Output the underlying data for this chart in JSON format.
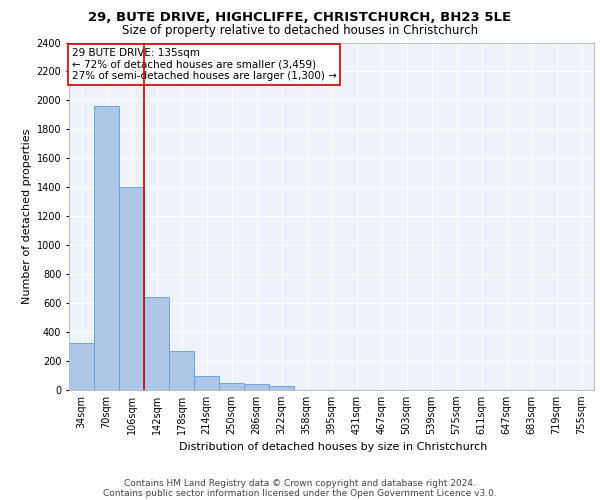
{
  "title1": "29, BUTE DRIVE, HIGHCLIFFE, CHRISTCHURCH, BH23 5LE",
  "title2": "Size of property relative to detached houses in Christchurch",
  "xlabel": "Distribution of detached houses by size in Christchurch",
  "ylabel": "Number of detached properties",
  "bar_values": [
    325,
    1960,
    1400,
    640,
    270,
    100,
    47,
    38,
    25,
    0,
    0,
    0,
    0,
    0,
    0,
    0,
    0,
    0,
    0,
    0,
    0
  ],
  "bar_labels": [
    "34sqm",
    "70sqm",
    "106sqm",
    "142sqm",
    "178sqm",
    "214sqm",
    "250sqm",
    "286sqm",
    "322sqm",
    "358sqm",
    "395sqm",
    "431sqm",
    "467sqm",
    "503sqm",
    "539sqm",
    "575sqm",
    "611sqm",
    "647sqm",
    "683sqm",
    "719sqm",
    "755sqm"
  ],
  "bar_color": "#aec6e8",
  "bar_edge_color": "#5a9fd4",
  "vline_color": "#cc0000",
  "annotation_box_text": "29 BUTE DRIVE: 135sqm\n← 72% of detached houses are smaller (3,459)\n27% of semi-detached houses are larger (1,300) →",
  "annotation_box_color": "#cc0000",
  "ylim": [
    0,
    2400
  ],
  "yticks": [
    0,
    200,
    400,
    600,
    800,
    1000,
    1200,
    1400,
    1600,
    1800,
    2000,
    2200,
    2400
  ],
  "footnote1": "Contains HM Land Registry data © Crown copyright and database right 2024.",
  "footnote2": "Contains public sector information licensed under the Open Government Licence v3.0.",
  "background_color": "#eef2f9",
  "grid_color": "#ffffff",
  "title1_fontsize": 9.5,
  "title2_fontsize": 8.5,
  "xlabel_fontsize": 8,
  "ylabel_fontsize": 8,
  "tick_fontsize": 7,
  "annotation_fontsize": 7.5,
  "footnote_fontsize": 6.5
}
